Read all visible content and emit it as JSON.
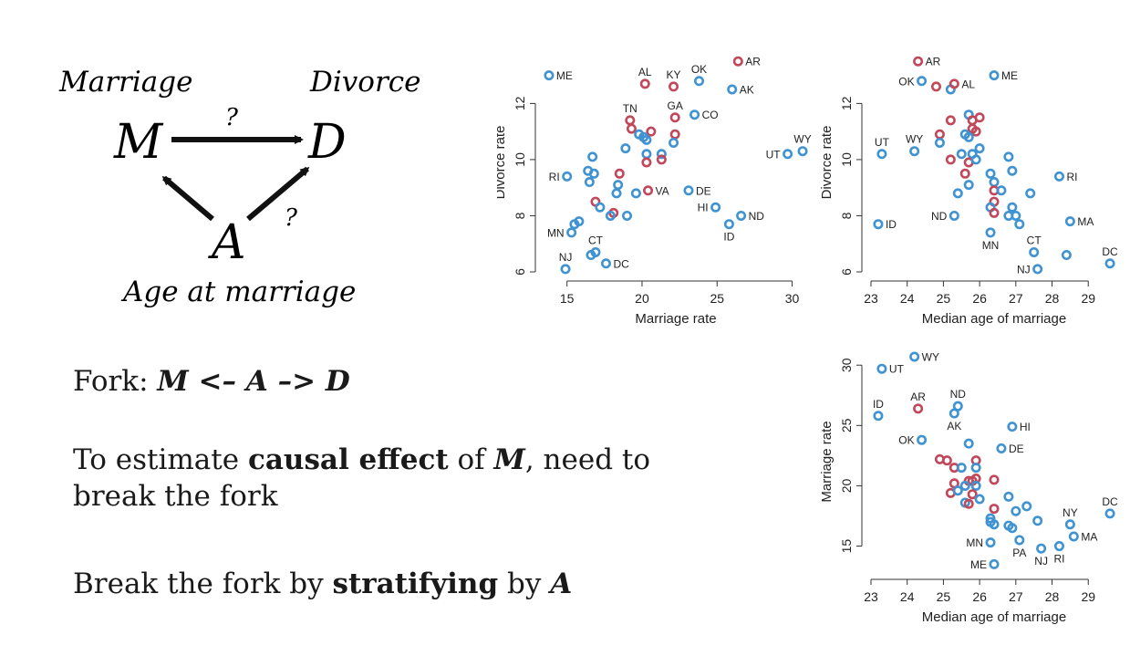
{
  "dag": {
    "top_left_label": "Marriage",
    "top_right_label": "Divorce",
    "bottom_label": "Age at marriage",
    "node_m": "M",
    "node_d": "D",
    "node_a": "A",
    "q1": "?",
    "q2": "?"
  },
  "text": {
    "fork_prefix": "Fork: ",
    "fork_formula": "M <– A –> D",
    "causal_pre": "To estimate ",
    "causal_bold": "causal effect",
    "causal_mid": " of ",
    "causal_m": "M",
    "causal_post": ", need to",
    "causal_line2": "break the fork",
    "strat_pre": "Break the fork by ",
    "strat_bold": "stratifying",
    "strat_mid": " by ",
    "strat_a": "A"
  },
  "colors": {
    "blue": "#3f93d2",
    "red": "#c2475a",
    "axis": "#333333"
  },
  "chart_data": [
    {
      "type": "scatter",
      "xlabel": "Marriage rate",
      "ylabel": "Divorce rate",
      "xlim": [
        13.5,
        31
      ],
      "ylim": [
        6,
        13.8
      ],
      "xticks": [
        15,
        20,
        25,
        30
      ],
      "yticks": [
        6,
        8,
        10,
        12
      ],
      "points": [
        {
          "x": 13.8,
          "y": 13.0,
          "c": "b",
          "label": "ME",
          "pos": "right"
        },
        {
          "x": 20.2,
          "y": 12.7,
          "c": "r",
          "label": "AL",
          "pos": "top"
        },
        {
          "x": 22.1,
          "y": 12.6,
          "c": "r",
          "label": "KY",
          "pos": "top"
        },
        {
          "x": 23.8,
          "y": 12.8,
          "c": "b",
          "label": "OK",
          "pos": "top"
        },
        {
          "x": 26.4,
          "y": 13.5,
          "c": "r",
          "label": "AR",
          "pos": "right"
        },
        {
          "x": 26.0,
          "y": 12.5,
          "c": "b",
          "label": "AK",
          "pos": "right"
        },
        {
          "x": 19.2,
          "y": 11.4,
          "c": "r",
          "label": "TN",
          "pos": "top"
        },
        {
          "x": 22.2,
          "y": 11.5,
          "c": "r",
          "label": "GA",
          "pos": "top"
        },
        {
          "x": 23.5,
          "y": 11.6,
          "c": "b",
          "label": "CO",
          "pos": "right"
        },
        {
          "x": 30.7,
          "y": 10.3,
          "c": "b",
          "label": "WY",
          "pos": "top"
        },
        {
          "x": 29.7,
          "y": 10.2,
          "c": "b",
          "label": "UT",
          "pos": "left"
        },
        {
          "x": 15.0,
          "y": 9.4,
          "c": "b",
          "label": "RI",
          "pos": "left"
        },
        {
          "x": 20.4,
          "y": 8.9,
          "c": "r",
          "label": "VA",
          "pos": "right"
        },
        {
          "x": 23.1,
          "y": 8.9,
          "c": "b",
          "label": "DE",
          "pos": "right"
        },
        {
          "x": 24.9,
          "y": 8.3,
          "c": "b",
          "label": "HI",
          "pos": "left"
        },
        {
          "x": 26.6,
          "y": 8.0,
          "c": "b",
          "label": "ND",
          "pos": "right"
        },
        {
          "x": 25.8,
          "y": 7.7,
          "c": "b",
          "label": "ID",
          "pos": "bottom"
        },
        {
          "x": 15.3,
          "y": 7.4,
          "c": "b",
          "label": "MN",
          "pos": "left"
        },
        {
          "x": 16.9,
          "y": 6.7,
          "c": "b",
          "label": "CT",
          "pos": "top"
        },
        {
          "x": 17.6,
          "y": 6.3,
          "c": "b",
          "label": "DC",
          "pos": "right"
        },
        {
          "x": 14.9,
          "y": 6.1,
          "c": "b",
          "label": "NJ",
          "pos": "top"
        },
        {
          "x": 19.3,
          "y": 11.1,
          "c": "r"
        },
        {
          "x": 20.6,
          "y": 11.0,
          "c": "r"
        },
        {
          "x": 19.8,
          "y": 10.9,
          "c": "b"
        },
        {
          "x": 20.1,
          "y": 10.8,
          "c": "b"
        },
        {
          "x": 20.3,
          "y": 10.7,
          "c": "b"
        },
        {
          "x": 22.2,
          "y": 10.9,
          "c": "r"
        },
        {
          "x": 22.1,
          "y": 10.6,
          "c": "b"
        },
        {
          "x": 18.9,
          "y": 10.4,
          "c": "b"
        },
        {
          "x": 20.3,
          "y": 10.2,
          "c": "b"
        },
        {
          "x": 21.3,
          "y": 10.2,
          "c": "b"
        },
        {
          "x": 21.3,
          "y": 10.0,
          "c": "r"
        },
        {
          "x": 20.3,
          "y": 9.9,
          "c": "r"
        },
        {
          "x": 16.7,
          "y": 10.1,
          "c": "b"
        },
        {
          "x": 16.4,
          "y": 9.6,
          "c": "b"
        },
        {
          "x": 16.8,
          "y": 9.5,
          "c": "b"
        },
        {
          "x": 18.5,
          "y": 9.5,
          "c": "r"
        },
        {
          "x": 16.5,
          "y": 9.2,
          "c": "b"
        },
        {
          "x": 18.4,
          "y": 9.1,
          "c": "b"
        },
        {
          "x": 18.3,
          "y": 8.8,
          "c": "b"
        },
        {
          "x": 19.6,
          "y": 8.8,
          "c": "b"
        },
        {
          "x": 16.9,
          "y": 8.5,
          "c": "r"
        },
        {
          "x": 17.2,
          "y": 8.3,
          "c": "b"
        },
        {
          "x": 18.1,
          "y": 8.1,
          "c": "r"
        },
        {
          "x": 17.9,
          "y": 8.0,
          "c": "b"
        },
        {
          "x": 19.0,
          "y": 8.0,
          "c": "b"
        },
        {
          "x": 15.8,
          "y": 7.8,
          "c": "b"
        },
        {
          "x": 15.5,
          "y": 7.7,
          "c": "b"
        },
        {
          "x": 16.6,
          "y": 6.6,
          "c": "b"
        }
      ]
    },
    {
      "type": "scatter",
      "xlabel": "Median age of marriage",
      "ylabel": "Divorce rate",
      "xlim": [
        23.0,
        29.8
      ],
      "ylim": [
        6,
        13.8
      ],
      "xticks": [
        23,
        24,
        25,
        26,
        27,
        28,
        29
      ],
      "yticks": [
        6,
        8,
        10,
        12
      ],
      "points": [
        {
          "x": 24.3,
          "y": 13.5,
          "c": "r",
          "label": "AR",
          "pos": "right"
        },
        {
          "x": 24.4,
          "y": 12.8,
          "c": "b",
          "label": "OK",
          "pos": "left"
        },
        {
          "x": 24.8,
          "y": 12.6,
          "c": "r"
        },
        {
          "x": 25.2,
          "y": 12.5,
          "c": "b"
        },
        {
          "x": 25.3,
          "y": 12.7,
          "c": "r",
          "label": "AL",
          "pos": "right"
        },
        {
          "x": 26.4,
          "y": 13.0,
          "c": "b",
          "label": "ME",
          "pos": "right"
        },
        {
          "x": 23.3,
          "y": 10.2,
          "c": "b",
          "label": "UT",
          "pos": "top"
        },
        {
          "x": 24.2,
          "y": 10.3,
          "c": "b",
          "label": "WY",
          "pos": "top"
        },
        {
          "x": 28.2,
          "y": 9.4,
          "c": "b",
          "label": "RI",
          "pos": "right"
        },
        {
          "x": 23.2,
          "y": 7.7,
          "c": "b",
          "label": "ID",
          "pos": "right"
        },
        {
          "x": 25.3,
          "y": 8.0,
          "c": "b",
          "label": "ND",
          "pos": "left"
        },
        {
          "x": 26.3,
          "y": 7.4,
          "c": "b",
          "label": "MN",
          "pos": "bottom"
        },
        {
          "x": 28.5,
          "y": 7.8,
          "c": "b",
          "label": "MA",
          "pos": "right"
        },
        {
          "x": 27.5,
          "y": 6.7,
          "c": "b",
          "label": "CT",
          "pos": "top"
        },
        {
          "x": 27.6,
          "y": 6.1,
          "c": "b",
          "label": "NJ",
          "pos": "left"
        },
        {
          "x": 29.6,
          "y": 6.3,
          "c": "b",
          "label": "DC",
          "pos": "top"
        },
        {
          "x": 28.4,
          "y": 6.6,
          "c": "b"
        },
        {
          "x": 25.7,
          "y": 11.6,
          "c": "b"
        },
        {
          "x": 25.8,
          "y": 11.4,
          "c": "r"
        },
        {
          "x": 26.0,
          "y": 11.5,
          "c": "r"
        },
        {
          "x": 25.8,
          "y": 11.1,
          "c": "r"
        },
        {
          "x": 25.9,
          "y": 11.0,
          "c": "r"
        },
        {
          "x": 25.6,
          "y": 10.9,
          "c": "b"
        },
        {
          "x": 25.7,
          "y": 10.8,
          "c": "b"
        },
        {
          "x": 25.2,
          "y": 11.4,
          "c": "r"
        },
        {
          "x": 24.9,
          "y": 10.9,
          "c": "r"
        },
        {
          "x": 24.9,
          "y": 10.6,
          "c": "b"
        },
        {
          "x": 26.0,
          "y": 10.4,
          "c": "b"
        },
        {
          "x": 25.5,
          "y": 10.2,
          "c": "b"
        },
        {
          "x": 25.8,
          "y": 10.2,
          "c": "b"
        },
        {
          "x": 25.2,
          "y": 10.0,
          "c": "r"
        },
        {
          "x": 25.7,
          "y": 9.9,
          "c": "r"
        },
        {
          "x": 25.9,
          "y": 10.0,
          "c": "b"
        },
        {
          "x": 26.8,
          "y": 10.1,
          "c": "b"
        },
        {
          "x": 26.9,
          "y": 9.6,
          "c": "b"
        },
        {
          "x": 25.6,
          "y": 9.5,
          "c": "r"
        },
        {
          "x": 26.3,
          "y": 9.5,
          "c": "b"
        },
        {
          "x": 25.7,
          "y": 9.1,
          "c": "b"
        },
        {
          "x": 26.4,
          "y": 9.2,
          "c": "b"
        },
        {
          "x": 26.4,
          "y": 8.9,
          "c": "r"
        },
        {
          "x": 26.6,
          "y": 8.9,
          "c": "b"
        },
        {
          "x": 25.4,
          "y": 8.8,
          "c": "b"
        },
        {
          "x": 27.4,
          "y": 8.8,
          "c": "b"
        },
        {
          "x": 26.4,
          "y": 8.5,
          "c": "r"
        },
        {
          "x": 26.3,
          "y": 8.3,
          "c": "b"
        },
        {
          "x": 26.9,
          "y": 8.3,
          "c": "b"
        },
        {
          "x": 26.4,
          "y": 8.1,
          "c": "r"
        },
        {
          "x": 26.8,
          "y": 8.0,
          "c": "b"
        },
        {
          "x": 27.0,
          "y": 8.0,
          "c": "b"
        },
        {
          "x": 27.1,
          "y": 7.7,
          "c": "b"
        }
      ]
    },
    {
      "type": "scatter",
      "xlabel": "Median age of marriage",
      "ylabel": "Marriage rate",
      "xlim": [
        23.0,
        29.8
      ],
      "ylim": [
        13,
        31
      ],
      "xticks": [
        23,
        24,
        25,
        26,
        27,
        28,
        29
      ],
      "yticks": [
        15,
        20,
        25,
        30
      ],
      "points": [
        {
          "x": 24.2,
          "y": 30.7,
          "c": "b",
          "label": "WY",
          "pos": "right"
        },
        {
          "x": 23.3,
          "y": 29.7,
          "c": "b",
          "label": "UT",
          "pos": "right"
        },
        {
          "x": 23.2,
          "y": 25.8,
          "c": "b",
          "label": "ID",
          "pos": "top"
        },
        {
          "x": 24.3,
          "y": 26.4,
          "c": "r",
          "label": "AR",
          "pos": "top"
        },
        {
          "x": 25.4,
          "y": 26.6,
          "c": "b",
          "label": "ND",
          "pos": "top"
        },
        {
          "x": 25.3,
          "y": 26.0,
          "c": "b",
          "label": "AK",
          "pos": "bottom"
        },
        {
          "x": 26.9,
          "y": 24.9,
          "c": "b",
          "label": "HI",
          "pos": "right"
        },
        {
          "x": 24.4,
          "y": 23.8,
          "c": "b",
          "label": "OK",
          "pos": "left"
        },
        {
          "x": 26.6,
          "y": 23.1,
          "c": "b",
          "label": "DE",
          "pos": "right"
        },
        {
          "x": 29.6,
          "y": 17.7,
          "c": "b",
          "label": "DC",
          "pos": "top"
        },
        {
          "x": 28.5,
          "y": 16.8,
          "c": "b",
          "label": "NY",
          "pos": "top"
        },
        {
          "x": 28.6,
          "y": 15.8,
          "c": "b",
          "label": "MA",
          "pos": "right"
        },
        {
          "x": 26.3,
          "y": 15.3,
          "c": "b",
          "label": "MN",
          "pos": "left"
        },
        {
          "x": 27.1,
          "y": 15.5,
          "c": "b",
          "label": "PA",
          "pos": "bottom"
        },
        {
          "x": 27.7,
          "y": 14.8,
          "c": "b",
          "label": "NJ",
          "pos": "bottom"
        },
        {
          "x": 28.2,
          "y": 15.0,
          "c": "b",
          "label": "RI",
          "pos": "bottom"
        },
        {
          "x": 26.4,
          "y": 13.5,
          "c": "b",
          "label": "ME",
          "pos": "left"
        },
        {
          "x": 25.7,
          "y": 23.5,
          "c": "b"
        },
        {
          "x": 24.9,
          "y": 22.2,
          "c": "r"
        },
        {
          "x": 25.1,
          "y": 22.1,
          "c": "r"
        },
        {
          "x": 25.9,
          "y": 22.1,
          "c": "r"
        },
        {
          "x": 25.3,
          "y": 21.5,
          "c": "r"
        },
        {
          "x": 25.5,
          "y": 21.5,
          "c": "b"
        },
        {
          "x": 25.9,
          "y": 21.5,
          "c": "b"
        },
        {
          "x": 25.9,
          "y": 20.6,
          "c": "r"
        },
        {
          "x": 26.4,
          "y": 20.5,
          "c": "r"
        },
        {
          "x": 25.7,
          "y": 20.4,
          "c": "r"
        },
        {
          "x": 25.8,
          "y": 20.4,
          "c": "r"
        },
        {
          "x": 25.3,
          "y": 20.2,
          "c": "r"
        },
        {
          "x": 25.6,
          "y": 20.0,
          "c": "b"
        },
        {
          "x": 25.9,
          "y": 20.0,
          "c": "b"
        },
        {
          "x": 25.2,
          "y": 19.4,
          "c": "r"
        },
        {
          "x": 25.8,
          "y": 19.3,
          "c": "r"
        },
        {
          "x": 25.4,
          "y": 19.6,
          "c": "b"
        },
        {
          "x": 26.0,
          "y": 18.9,
          "c": "b"
        },
        {
          "x": 26.8,
          "y": 19.1,
          "c": "b"
        },
        {
          "x": 25.6,
          "y": 18.6,
          "c": "b"
        },
        {
          "x": 25.7,
          "y": 18.5,
          "c": "r"
        },
        {
          "x": 26.4,
          "y": 18.1,
          "c": "r"
        },
        {
          "x": 27.0,
          "y": 17.9,
          "c": "b"
        },
        {
          "x": 27.3,
          "y": 18.3,
          "c": "b"
        },
        {
          "x": 26.3,
          "y": 17.3,
          "c": "b"
        },
        {
          "x": 26.3,
          "y": 17.0,
          "c": "b"
        },
        {
          "x": 26.4,
          "y": 16.8,
          "c": "b"
        },
        {
          "x": 26.8,
          "y": 16.7,
          "c": "b"
        },
        {
          "x": 27.6,
          "y": 17.1,
          "c": "b"
        },
        {
          "x": 26.9,
          "y": 16.5,
          "c": "b"
        }
      ]
    }
  ]
}
